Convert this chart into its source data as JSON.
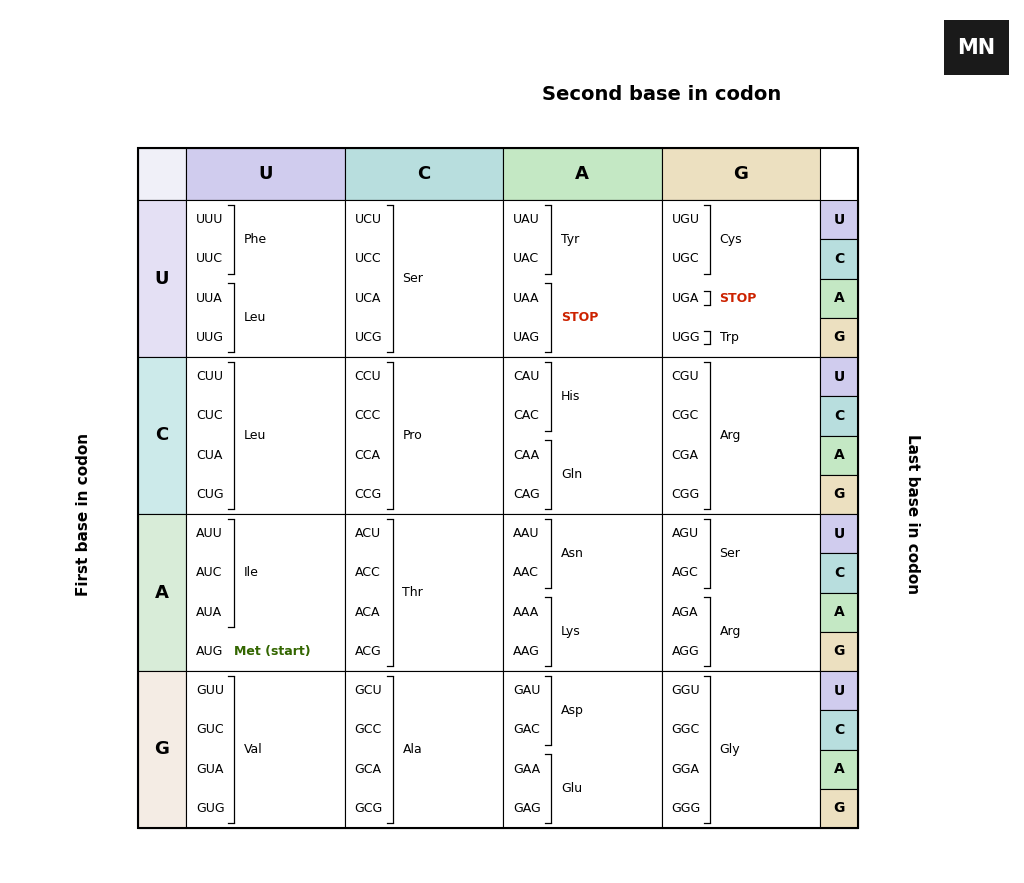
{
  "title": "Second base in codon",
  "ylabel_left": "First base in codon",
  "ylabel_right": "Last base in codon",
  "second_bases": [
    "U",
    "C",
    "A",
    "G"
  ],
  "first_bases": [
    "U",
    "C",
    "A",
    "G"
  ],
  "last_bases": [
    "U",
    "C",
    "A",
    "G"
  ],
  "header_colors": {
    "U": "#d0ccee",
    "C": "#b8dede",
    "A": "#c4e8c4",
    "G": "#ece0c0"
  },
  "row_colors": {
    "U": "#e4e0f4",
    "C": "#cceaea",
    "A": "#d8ecd8",
    "G": "#f4ece4"
  },
  "last_base_colors": {
    "U": "#d0ccee",
    "C": "#b8dede",
    "A": "#c4e8c4",
    "G": "#ece0c0"
  },
  "codons": {
    "UU": {
      "codons": [
        "UUU",
        "UUC",
        "UUA",
        "UUG"
      ],
      "aa": [
        [
          "Phe",
          0,
          1,
          "#000000"
        ],
        [
          "Leu",
          2,
          3,
          "#000000"
        ]
      ]
    },
    "UC": {
      "codons": [
        "UCU",
        "UCC",
        "UCA",
        "UCG"
      ],
      "aa": [
        [
          "Ser",
          0,
          3,
          "#000000"
        ]
      ]
    },
    "UA": {
      "codons": [
        "UAU",
        "UAC",
        "UAA",
        "UAG"
      ],
      "aa": [
        [
          "Tyr",
          0,
          1,
          "#000000"
        ],
        [
          "STOP",
          2,
          3,
          "#cc2200"
        ]
      ]
    },
    "UG": {
      "codons": [
        "UGU",
        "UGC",
        "UGA",
        "UGG"
      ],
      "aa": [
        [
          "Cys",
          0,
          1,
          "#000000"
        ],
        [
          "STOP",
          2,
          2,
          "#cc2200"
        ],
        [
          "Trp",
          3,
          3,
          "#000000"
        ]
      ]
    },
    "CU": {
      "codons": [
        "CUU",
        "CUC",
        "CUA",
        "CUG"
      ],
      "aa": [
        [
          "Leu",
          0,
          3,
          "#000000"
        ]
      ]
    },
    "CC": {
      "codons": [
        "CCU",
        "CCC",
        "CCA",
        "CCG"
      ],
      "aa": [
        [
          "Pro",
          0,
          3,
          "#000000"
        ]
      ]
    },
    "CA": {
      "codons": [
        "CAU",
        "CAC",
        "CAA",
        "CAG"
      ],
      "aa": [
        [
          "His",
          0,
          1,
          "#000000"
        ],
        [
          "Gln",
          2,
          3,
          "#000000"
        ]
      ]
    },
    "CG": {
      "codons": [
        "CGU",
        "CGC",
        "CGA",
        "CGG"
      ],
      "aa": [
        [
          "Arg",
          0,
          3,
          "#000000"
        ]
      ]
    },
    "AU": {
      "codons": [
        "AUU",
        "AUC",
        "AUA",
        "AUG"
      ],
      "aa": [
        [
          "Ile",
          0,
          2,
          "#000000"
        ],
        [
          "Met (start)",
          3,
          3,
          "#336600"
        ]
      ]
    },
    "AC": {
      "codons": [
        "ACU",
        "ACC",
        "ACA",
        "ACG"
      ],
      "aa": [
        [
          "Thr",
          0,
          3,
          "#000000"
        ]
      ]
    },
    "AA": {
      "codons": [
        "AAU",
        "AAC",
        "AAA",
        "AAG"
      ],
      "aa": [
        [
          "Asn",
          0,
          1,
          "#000000"
        ],
        [
          "Lys",
          2,
          3,
          "#000000"
        ]
      ]
    },
    "AG": {
      "codons": [
        "AGU",
        "AGC",
        "AGA",
        "AGG"
      ],
      "aa": [
        [
          "Ser",
          0,
          1,
          "#000000"
        ],
        [
          "Arg",
          2,
          3,
          "#000000"
        ]
      ]
    },
    "GU": {
      "codons": [
        "GUU",
        "GUC",
        "GUA",
        "GUG"
      ],
      "aa": [
        [
          "Val",
          0,
          3,
          "#000000"
        ]
      ]
    },
    "GC": {
      "codons": [
        "GCU",
        "GCC",
        "GCA",
        "GCG"
      ],
      "aa": [
        [
          "Ala",
          0,
          3,
          "#000000"
        ]
      ]
    },
    "GA": {
      "codons": [
        "GAU",
        "GAC",
        "GAA",
        "GAG"
      ],
      "aa": [
        [
          "Asp",
          0,
          1,
          "#000000"
        ],
        [
          "Glu",
          2,
          3,
          "#000000"
        ]
      ]
    },
    "GG": {
      "codons": [
        "GGU",
        "GGC",
        "GGA",
        "GGG"
      ],
      "aa": [
        [
          "Gly",
          0,
          3,
          "#000000"
        ]
      ]
    }
  },
  "logo_text": "MN",
  "logo_bg": "#1a1a1a",
  "logo_fg": "#ffffff"
}
